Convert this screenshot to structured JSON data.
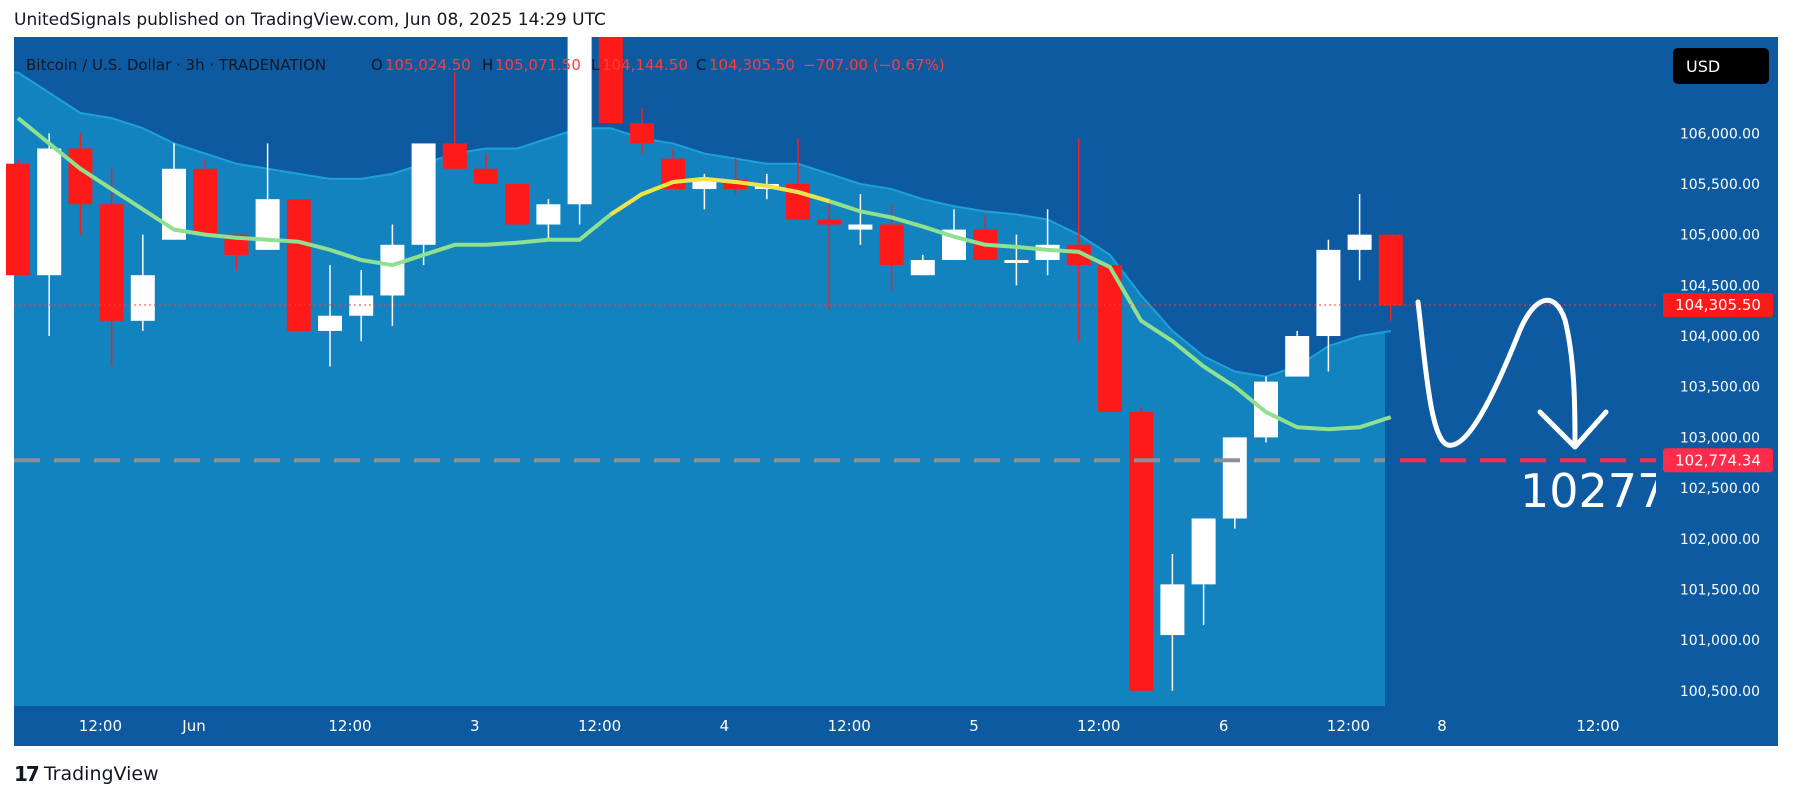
{
  "header": {
    "published": "UnitedSignals published on TradingView.com, Jun 08, 2025 14:29 UTC"
  },
  "legend": {
    "symbol": "Bitcoin / U.S. Dollar · 3h · TRADENATION",
    "open_label": "O",
    "open": "105,024.50",
    "high_label": "H",
    "high": "105,071.50",
    "low_label": "L",
    "low": "104,144.50",
    "close_label": "C",
    "close": "104,305.50",
    "change": "−707.00 (−0.67%)"
  },
  "currency": "USD",
  "price_tag": "104,305.50",
  "target_tag": "102,774.34",
  "target_annotation": "10277",
  "footer": {
    "brand": "TradingView"
  },
  "colors": {
    "background": "#0d5aa0",
    "band": "#1487c2",
    "up": "#ffffff",
    "down": "#ff1a1a",
    "ma_yellow": "#f0e34a",
    "ma_green": "#8fe08f",
    "target_line": "#ff2b4a"
  },
  "chart_data": {
    "type": "candlestick",
    "timeframe": "3h",
    "y_ticks": [
      100500,
      101000,
      101500,
      102000,
      102500,
      103000,
      103500,
      104000,
      104500,
      105000,
      105500,
      106000
    ],
    "y_tick_labels": [
      "100,500.00",
      "101,000.00",
      "101,500.00",
      "102,000.00",
      "102,500.00",
      "103,000.00",
      "103,500.00",
      "104,000.00",
      "104,500.00",
      "105,000.00",
      "105,500.00",
      "106,000.00"
    ],
    "x_labels": [
      "12:00",
      "Jun",
      "12:00",
      "3",
      "12:00",
      "4",
      "12:00",
      "5",
      "12:00",
      "6",
      "12:00",
      "8",
      "12:00"
    ],
    "x_label_bar_index": [
      2,
      5,
      10,
      14,
      18,
      22,
      26,
      30,
      34,
      38,
      42,
      45,
      50
    ],
    "ylim": [
      100350,
      106950
    ],
    "candles": [
      {
        "o": 105700,
        "h": 105750,
        "l": 104600,
        "c": 104600
      },
      {
        "o": 104600,
        "h": 106000,
        "l": 104000,
        "c": 105850
      },
      {
        "o": 105850,
        "h": 106000,
        "l": 105000,
        "c": 105300
      },
      {
        "o": 105300,
        "h": 105650,
        "l": 103700,
        "c": 104150
      },
      {
        "o": 104150,
        "h": 105000,
        "l": 104050,
        "c": 104600
      },
      {
        "o": 104950,
        "h": 105900,
        "l": 104950,
        "c": 105650
      },
      {
        "o": 105650,
        "h": 105750,
        "l": 105000,
        "c": 105000
      },
      {
        "o": 105000,
        "h": 105000,
        "l": 104650,
        "c": 104800
      },
      {
        "o": 104850,
        "h": 105900,
        "l": 104850,
        "c": 105350
      },
      {
        "o": 105350,
        "h": 105350,
        "l": 104050,
        "c": 104050
      },
      {
        "o": 104050,
        "h": 104700,
        "l": 103700,
        "c": 104200
      },
      {
        "o": 104200,
        "h": 104650,
        "l": 103950,
        "c": 104400
      },
      {
        "o": 104400,
        "h": 105100,
        "l": 104100,
        "c": 104900
      },
      {
        "o": 104900,
        "h": 105900,
        "l": 104700,
        "c": 105900
      },
      {
        "o": 105900,
        "h": 106600,
        "l": 105650,
        "c": 105650
      },
      {
        "o": 105650,
        "h": 105800,
        "l": 105500,
        "c": 105500
      },
      {
        "o": 105500,
        "h": 105500,
        "l": 105100,
        "c": 105100
      },
      {
        "o": 105100,
        "h": 105350,
        "l": 104950,
        "c": 105300
      },
      {
        "o": 105300,
        "h": 106950,
        "l": 105100,
        "c": 106950
      },
      {
        "o": 106950,
        "h": 106950,
        "l": 106100,
        "c": 106100
      },
      {
        "o": 106100,
        "h": 106250,
        "l": 105800,
        "c": 105900
      },
      {
        "o": 105750,
        "h": 105850,
        "l": 105450,
        "c": 105450
      },
      {
        "o": 105450,
        "h": 105600,
        "l": 105250,
        "c": 105550
      },
      {
        "o": 105550,
        "h": 105750,
        "l": 105400,
        "c": 105450
      },
      {
        "o": 105450,
        "h": 105600,
        "l": 105350,
        "c": 105500
      },
      {
        "o": 105500,
        "h": 105950,
        "l": 105150,
        "c": 105150
      },
      {
        "o": 105150,
        "h": 105300,
        "l": 104250,
        "c": 105100
      },
      {
        "o": 105050,
        "h": 105400,
        "l": 104900,
        "c": 105100
      },
      {
        "o": 105100,
        "h": 105300,
        "l": 104450,
        "c": 104700
      },
      {
        "o": 104600,
        "h": 104800,
        "l": 104600,
        "c": 104750
      },
      {
        "o": 104750,
        "h": 105250,
        "l": 104750,
        "c": 105050
      },
      {
        "o": 105050,
        "h": 105200,
        "l": 104750,
        "c": 104750
      },
      {
        "o": 104750,
        "h": 105000,
        "l": 104500,
        "c": 104750
      },
      {
        "o": 104750,
        "h": 105250,
        "l": 104600,
        "c": 104900
      },
      {
        "o": 104900,
        "h": 105950,
        "l": 103950,
        "c": 104700
      },
      {
        "o": 104700,
        "h": 104700,
        "l": 103250,
        "c": 103250
      },
      {
        "o": 103250,
        "h": 103300,
        "l": 100500,
        "c": 100500
      },
      {
        "o": 101050,
        "h": 101850,
        "l": 100500,
        "c": 101550
      },
      {
        "o": 101550,
        "h": 102200,
        "l": 101150,
        "c": 102200
      },
      {
        "o": 102200,
        "h": 103000,
        "l": 102100,
        "c": 103000
      },
      {
        "o": 103000,
        "h": 103600,
        "l": 102950,
        "c": 103550
      },
      {
        "o": 103600,
        "h": 104050,
        "l": 103600,
        "c": 104000
      },
      {
        "o": 104000,
        "h": 104950,
        "l": 103650,
        "c": 104850
      },
      {
        "o": 104850,
        "h": 105400,
        "l": 104550,
        "c": 105000
      },
      {
        "o": 105000,
        "h": 105000,
        "l": 104150,
        "c": 104300
      }
    ],
    "ma_green": [
      106150,
      105900,
      105650,
      105450,
      105250,
      105050,
      105000,
      104970,
      104950,
      104930,
      104850,
      104750,
      104700,
      104800,
      104900,
      104900,
      104920,
      104950,
      104950,
      105200,
      105400,
      105520,
      105550,
      105520,
      105480,
      105420,
      105330,
      105230,
      105170,
      105080,
      104980,
      104900,
      104880,
      104850,
      104830,
      104680,
      104150,
      103950,
      103700,
      103500,
      103250,
      103100,
      103080,
      103100,
      103200
    ],
    "ma_yellow_start_index": 19,
    "ma_yellow_end_index": 26,
    "band_upper": [
      106600,
      106400,
      106200,
      106150,
      106050,
      105900,
      105800,
      105700,
      105650,
      105600,
      105550,
      105550,
      105600,
      105700,
      105800,
      105850,
      105850,
      105950,
      106050,
      106050,
      105950,
      105900,
      105800,
      105750,
      105700,
      105700,
      105600,
      105500,
      105450,
      105350,
      105280,
      105230,
      105200,
      105150,
      105000,
      104800,
      104400,
      104050,
      103800,
      103650,
      103600,
      103700,
      103900,
      104000,
      104050
    ],
    "target": 102774.34,
    "last_price": 104305.5
  }
}
